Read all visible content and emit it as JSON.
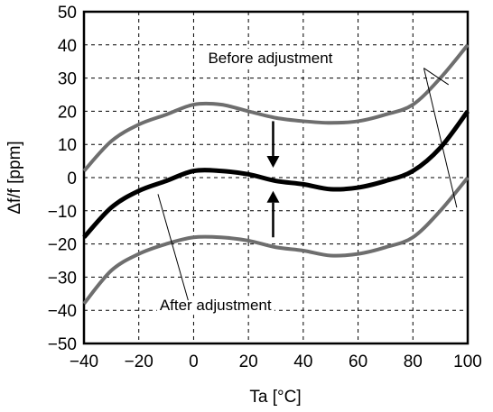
{
  "chart_data": {
    "type": "line",
    "xlabel": "Ta [°C]",
    "ylabel": "Δf/f [ppm]",
    "xlim": [
      -40,
      100
    ],
    "ylim": [
      -50,
      50
    ],
    "x_ticks": [
      "−40",
      "−20",
      "0",
      "20",
      "40",
      "60",
      "80",
      "100"
    ],
    "x_tick_values": [
      -40,
      -20,
      0,
      20,
      40,
      60,
      80,
      100
    ],
    "y_ticks": [
      "50",
      "40",
      "30",
      "20",
      "10",
      "0",
      "−10",
      "−20",
      "−30",
      "−40",
      "−50"
    ],
    "y_tick_values": [
      50,
      40,
      30,
      20,
      10,
      0,
      -10,
      -20,
      -30,
      -40,
      -50
    ],
    "grid": true,
    "x": [
      -40,
      -30,
      -20,
      -10,
      0,
      10,
      20,
      30,
      40,
      50,
      60,
      70,
      80,
      90,
      100
    ],
    "series": [
      {
        "values": [
          2,
          11,
          16,
          19,
          22,
          22,
          20,
          18,
          17,
          16.5,
          17,
          19,
          22,
          30,
          40
        ],
        "color": "#6e6e6e",
        "width": 4
      },
      {
        "values": [
          -18,
          -9,
          -4,
          -1,
          2,
          2,
          1,
          -1,
          -2,
          -3.5,
          -3,
          -1,
          2,
          9,
          20
        ],
        "color": "#000000",
        "width": 5
      },
      {
        "values": [
          -38,
          -28,
          -23,
          -20,
          -18,
          -18,
          -19,
          -21,
          -22,
          -23.5,
          -23,
          -21,
          -18,
          -10,
          0
        ],
        "color": "#6e6e6e",
        "width": 4
      }
    ],
    "annotations": [
      {
        "text": "Before adjustment",
        "x": 28,
        "y": 34.5,
        "leaders": [
          {
            "from": [
              84,
              33
            ],
            "to": [
              93,
              28
            ]
          },
          {
            "from": [
              84,
              33
            ],
            "to": [
              96,
              -9
            ]
          }
        ]
      },
      {
        "text": "After adjustment",
        "x": 8,
        "y": -40,
        "leaders": [
          {
            "from": [
              -2,
              -37
            ],
            "to": [
              -13,
              -5
            ]
          }
        ]
      }
    ],
    "arrows": [
      {
        "from": [
          29,
          17
        ],
        "to": [
          29,
          3
        ]
      },
      {
        "from": [
          29,
          -18
        ],
        "to": [
          29,
          -4
        ]
      }
    ]
  }
}
